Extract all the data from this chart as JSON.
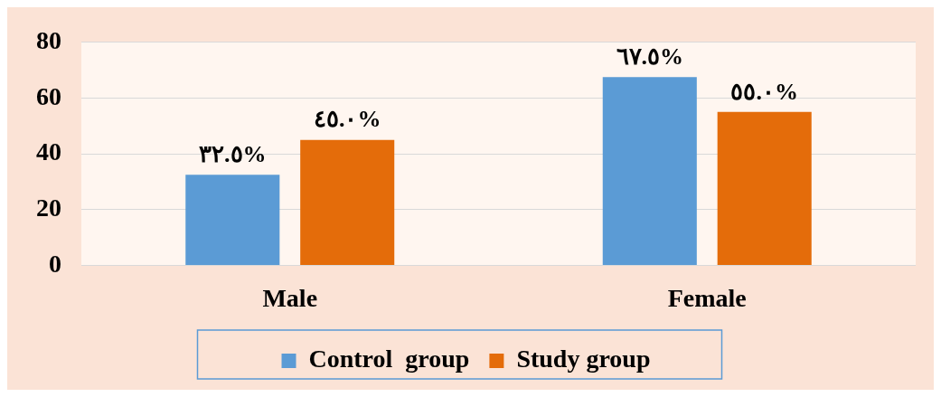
{
  "chart_data": {
    "type": "bar",
    "categories": [
      "Male",
      "Female"
    ],
    "series": [
      {
        "name": "Control  group",
        "color": "#5b9bd5",
        "values": [
          32.5,
          67.5
        ],
        "value_labels": [
          "٣٢.٥%",
          "٦٧.٥%"
        ]
      },
      {
        "name": "Study group",
        "color": "#e46c0a",
        "values": [
          45.0,
          55.0
        ],
        "value_labels": [
          "٤٥.٠%",
          "٥٥.٠%"
        ]
      }
    ],
    "ylim": [
      0,
      80
    ],
    "yticks": [
      0,
      20,
      40,
      60,
      80
    ],
    "grid": "y",
    "legend": "bottom"
  }
}
